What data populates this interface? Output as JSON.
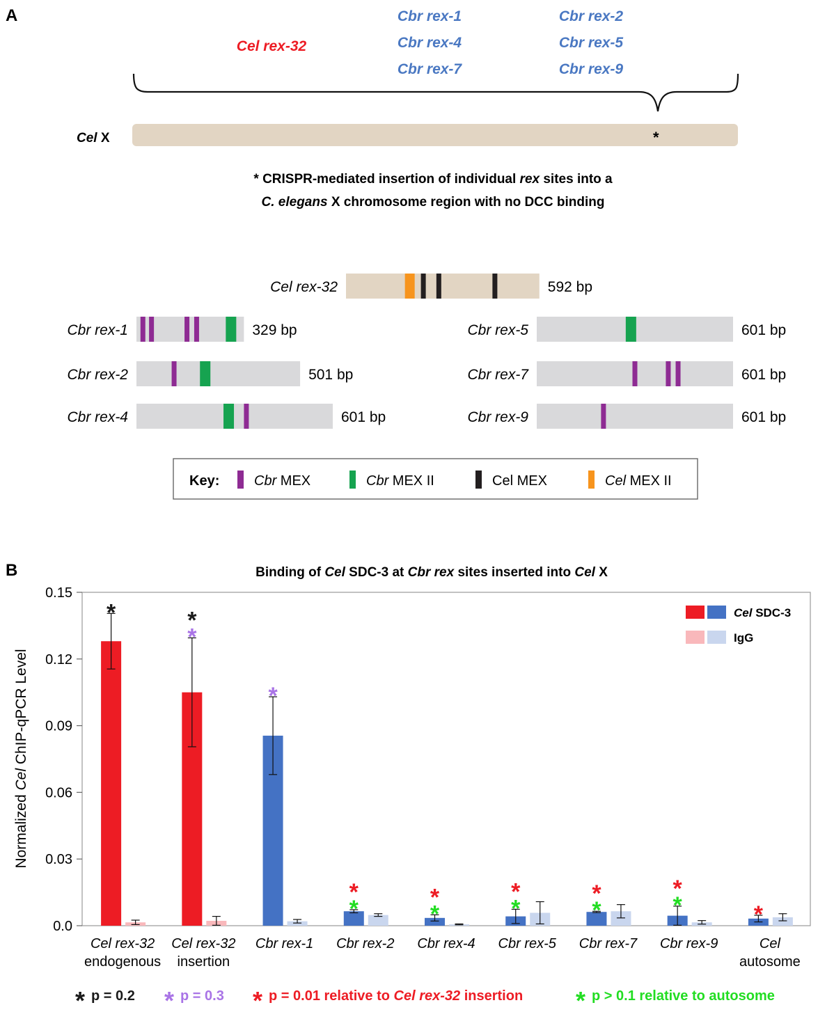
{
  "panel_a": {
    "label": "A",
    "site_groups": {
      "red": [
        "Cel rex-32"
      ],
      "blue": [
        "Cbr rex-1",
        "Cbr rex-4",
        "Cbr rex-7",
        "Cbr rex-2",
        "Cbr rex-5",
        "Cbr rex-9"
      ]
    },
    "chromosome": {
      "label_italic": "Cel",
      "label_rest": " X",
      "insertion_mark": "*"
    },
    "note_line1": [
      "* CRISPR-mediated insertion of individual ",
      "rex",
      " sites into a"
    ],
    "note_line2": [
      "C. elegans",
      " X chromosome region with no DCC binding"
    ],
    "sites": [
      {
        "name": "Cel rex-32",
        "length_label": "592 bp",
        "length_bp": 592,
        "motifs": [
          {
            "type": "cel_mex2",
            "pos": 0.33
          },
          {
            "type": "cel_mex",
            "pos": 0.4
          },
          {
            "type": "cel_mex",
            "pos": 0.48
          },
          {
            "type": "cel_mex",
            "pos": 0.77
          }
        ]
      },
      {
        "name": "Cbr rex-1",
        "length_label": "329 bp",
        "length_bp": 329,
        "motifs": [
          {
            "type": "cbr_mex",
            "pos": 0.06
          },
          {
            "type": "cbr_mex",
            "pos": 0.14
          },
          {
            "type": "cbr_mex",
            "pos": 0.47
          },
          {
            "type": "cbr_mex",
            "pos": 0.56
          },
          {
            "type": "cbr_mex2",
            "pos": 0.88
          }
        ]
      },
      {
        "name": "Cbr rex-2",
        "length_label": "501 bp",
        "length_bp": 501,
        "motifs": [
          {
            "type": "cbr_mex",
            "pos": 0.23
          },
          {
            "type": "cbr_mex2",
            "pos": 0.42
          }
        ]
      },
      {
        "name": "Cbr rex-4",
        "length_label": "601 bp",
        "length_bp": 601,
        "motifs": [
          {
            "type": "cbr_mex2",
            "pos": 0.47
          },
          {
            "type": "cbr_mex",
            "pos": 0.56
          }
        ]
      },
      {
        "name": "Cbr rex-5",
        "length_label": "601 bp",
        "length_bp": 601,
        "motifs": [
          {
            "type": "cbr_mex2",
            "pos": 0.48
          }
        ]
      },
      {
        "name": "Cbr rex-7",
        "length_label": "601 bp",
        "length_bp": 601,
        "motifs": [
          {
            "type": "cbr_mex",
            "pos": 0.5
          },
          {
            "type": "cbr_mex",
            "pos": 0.67
          },
          {
            "type": "cbr_mex",
            "pos": 0.72
          }
        ]
      },
      {
        "name": "Cbr rex-9",
        "length_label": "601 bp",
        "length_bp": 601,
        "motifs": [
          {
            "type": "cbr_mex",
            "pos": 0.34
          }
        ]
      }
    ],
    "key": {
      "title": "Key:",
      "items": [
        {
          "type": "cbr_mex",
          "italic": "Cbr",
          "rest": " MEX"
        },
        {
          "type": "cbr_mex2",
          "italic": "Cbr",
          "rest": " MEX II"
        },
        {
          "type": "cel_mex",
          "italic": "",
          "rest": "Cel MEX"
        },
        {
          "type": "cel_mex2",
          "italic": "Cel",
          "rest": " MEX II"
        }
      ]
    },
    "colors": {
      "cbr_mex": "#8e2b93",
      "cbr_mex2": "#16a350",
      "cel_mex": "#231f20",
      "cel_mex2": "#f7941d",
      "cel_bar": "#e2d5c3",
      "cbr_bar": "#d9d9db",
      "red_text": "#ed1c24",
      "blue_text": "#4a78c2"
    }
  },
  "panel_b": {
    "label": "B",
    "chart_data": {
      "type": "bar",
      "title_parts": [
        {
          "t": "Binding of ",
          "i": false
        },
        {
          "t": "Cel",
          "i": true
        },
        {
          "t": " SDC-3 at ",
          "i": false
        },
        {
          "t": "Cbr rex",
          "i": true
        },
        {
          "t": " sites inserted into ",
          "i": false
        },
        {
          "t": "Cel",
          "i": true
        },
        {
          "t": " X",
          "i": false
        }
      ],
      "ylabel_parts": [
        {
          "t": "Normalized ",
          "i": false
        },
        {
          "t": "Cel",
          "i": true
        },
        {
          "t": " ChIP-qPCR Level",
          "i": false
        }
      ],
      "ylim": [
        0,
        0.15
      ],
      "yticks": [
        "0.0",
        "0.03",
        "0.06",
        "0.09",
        "0.12",
        "0.15"
      ],
      "ytick_values": [
        0,
        0.03,
        0.06,
        0.09,
        0.12,
        0.15
      ],
      "categories": [
        {
          "line1": "Cel rex-32",
          "line2": "endogenous",
          "color": "red",
          "sdc3": 0.128,
          "sdc3_err": 0.0125,
          "igg": 0.0015,
          "igg_err": 0.001,
          "stars": [
            "black"
          ]
        },
        {
          "line1": "Cel rex-32",
          "line2": "insertion",
          "color": "red",
          "sdc3": 0.105,
          "sdc3_err": 0.0245,
          "igg": 0.0022,
          "igg_err": 0.002,
          "stars": [
            "purple",
            "black"
          ]
        },
        {
          "line1": "Cbr rex-1",
          "line2": "",
          "color": "blue",
          "sdc3": 0.0855,
          "sdc3_err": 0.0175,
          "igg": 0.002,
          "igg_err": 0.0008,
          "stars": [
            "purple"
          ]
        },
        {
          "line1": "Cbr rex-2",
          "line2": "",
          "color": "blue",
          "sdc3": 0.0065,
          "sdc3_err": 0.0007,
          "igg": 0.0048,
          "igg_err": 0.0006,
          "stars": [
            "green",
            "red"
          ]
        },
        {
          "line1": "Cbr rex-4",
          "line2": "",
          "color": "blue",
          "sdc3": 0.0035,
          "sdc3_err": 0.0014,
          "igg": 0.0006,
          "igg_err": 0.0002,
          "stars": [
            "green",
            "red"
          ]
        },
        {
          "line1": "Cbr rex-5",
          "line2": "",
          "color": "blue",
          "sdc3": 0.0042,
          "sdc3_err": 0.0032,
          "igg": 0.0058,
          "igg_err": 0.005,
          "stars": [
            "green",
            "red"
          ]
        },
        {
          "line1": "Cbr rex-7",
          "line2": "",
          "color": "blue",
          "sdc3": 0.0062,
          "sdc3_err": 0.0003,
          "igg": 0.0065,
          "igg_err": 0.003,
          "stars": [
            "green",
            "red"
          ]
        },
        {
          "line1": "Cbr rex-9",
          "line2": "",
          "color": "blue",
          "sdc3": 0.0045,
          "sdc3_err": 0.0043,
          "igg": 0.0015,
          "igg_err": 0.0008,
          "stars": [
            "green",
            "red"
          ]
        },
        {
          "line1": "Cel",
          "line2": "autosome",
          "color": "blue",
          "sdc3": 0.0032,
          "sdc3_err": 0.0015,
          "igg": 0.0038,
          "igg_err": 0.0016,
          "stars": [
            "red"
          ]
        }
      ],
      "legend": [
        {
          "parts": [
            {
              "t": "Cel",
              "i": true
            },
            {
              "t": " SDC-3",
              "i": false
            }
          ],
          "colors": [
            "#ed1c24",
            "#4472c4"
          ]
        },
        {
          "parts": [
            {
              "t": "IgG",
              "i": false
            }
          ],
          "colors": [
            "#f9b8bb",
            "#c9d6ee"
          ]
        }
      ],
      "legend_position": "top-right",
      "colors": {
        "red_sdc3": "#ed1c24",
        "red_igg": "#f9b8bb",
        "blue_sdc3": "#4472c4",
        "blue_igg": "#c9d6ee"
      }
    },
    "pvalue_legend": [
      {
        "color": "#1a1a1a",
        "parts": [
          {
            "t": "p = 0.2",
            "i": false
          }
        ]
      },
      {
        "color": "#a974e6",
        "parts": [
          {
            "t": "p = 0.3",
            "i": false
          }
        ]
      },
      {
        "color": "#ed1c24",
        "parts": [
          {
            "t": "p = 0.01 relative to ",
            "i": false
          },
          {
            "t": "Cel rex-32",
            "i": true
          },
          {
            "t": " insertion",
            "i": false
          }
        ]
      },
      {
        "color": "#22dd22",
        "parts": [
          {
            "t": "p > 0.1 relative to autosome",
            "i": false
          }
        ]
      }
    ],
    "star_colors": {
      "black": "#1a1a1a",
      "purple": "#a974e6",
      "red": "#ed1c24",
      "green": "#22dd22"
    }
  }
}
